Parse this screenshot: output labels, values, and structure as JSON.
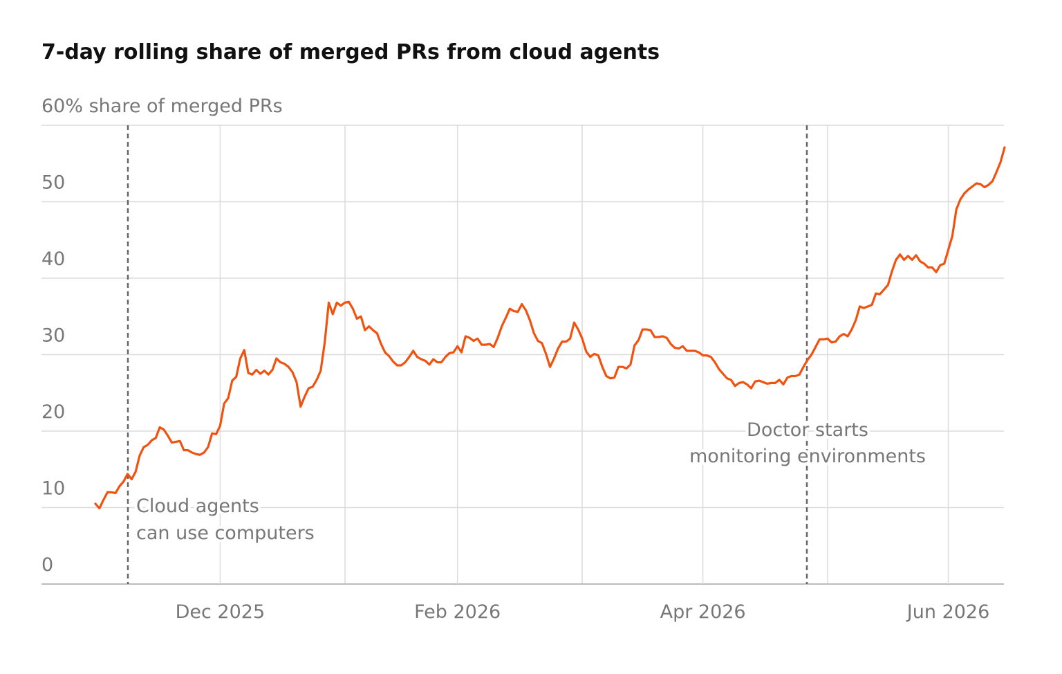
{
  "chart_data": {
    "type": "line",
    "title": "7-day rolling share of merged PRs from cloud agents",
    "color": "#f0520f",
    "ylim": [
      0,
      60
    ],
    "yticks": [
      0,
      10,
      20,
      30,
      40,
      50,
      {
        "value": 60,
        "label": "60% share of merged PRs"
      }
    ],
    "grid": true,
    "categories": [
      null,
      null,
      null,
      null,
      null,
      null,
      null,
      null,
      null,
      null,
      null,
      null,
      null,
      null,
      null,
      null,
      null,
      null,
      null,
      null,
      null,
      null,
      null,
      null,
      null,
      null,
      null,
      null,
      null,
      null,
      null,
      "Dec 2025",
      null,
      null,
      null,
      null,
      null,
      null,
      null,
      null,
      null,
      null,
      null,
      null,
      null,
      null,
      null,
      null,
      null,
      null,
      null,
      null,
      null,
      null,
      null,
      null,
      null,
      null,
      null,
      null,
      null,
      null,
      null,
      null,
      null,
      null,
      null,
      null,
      null,
      null,
      null,
      null,
      null,
      null,
      null,
      null,
      null,
      null,
      null,
      null,
      null,
      null,
      null,
      null,
      null,
      null,
      null,
      null,
      null,
      null,
      "Feb 2026",
      null,
      null,
      null,
      null,
      null,
      null,
      null,
      null,
      null,
      null,
      null,
      null,
      null,
      null,
      null,
      null,
      null,
      null,
      null,
      null,
      null,
      null,
      null,
      null,
      null,
      null,
      null,
      null,
      null,
      null,
      null,
      null,
      null,
      null,
      null,
      null,
      null,
      null,
      null,
      null,
      null,
      null,
      null,
      null,
      null,
      null,
      null,
      null,
      null,
      null,
      null,
      null,
      null,
      null,
      null,
      null,
      null,
      null,
      null,
      null,
      "Apr 2026",
      null,
      null,
      null,
      null,
      null,
      null,
      null,
      null,
      null,
      null,
      null,
      null,
      null,
      null,
      null,
      null,
      null,
      null,
      null,
      null,
      null,
      null,
      null,
      null,
      null,
      null,
      null,
      null,
      null,
      null,
      null,
      null,
      null,
      null,
      null,
      null,
      null,
      null,
      null,
      null,
      null,
      null,
      null,
      null,
      null,
      null,
      null,
      null,
      null,
      null,
      null,
      null,
      null,
      null,
      null,
      null,
      null,
      null,
      null,
      null,
      "Jun 2026",
      null,
      null,
      null,
      null,
      null,
      null,
      null,
      null,
      null,
      null,
      null,
      null,
      null,
      null
    ],
    "values": [
      10.5,
      9.9,
      11.0,
      12.0,
      12.0,
      11.9,
      12.8,
      13.4,
      14.4,
      13.7,
      14.7,
      16.8,
      17.9,
      18.2,
      18.8,
      19.1,
      20.5,
      20.2,
      19.4,
      18.5,
      18.6,
      18.7,
      17.5,
      17.5,
      17.2,
      17.0,
      16.9,
      17.2,
      17.9,
      19.7,
      19.6,
      20.7,
      23.6,
      24.3,
      26.6,
      27.1,
      29.5,
      30.6,
      27.6,
      27.4,
      28.0,
      27.5,
      27.9,
      27.4,
      28.0,
      29.5,
      29.0,
      28.8,
      28.4,
      27.7,
      26.4,
      23.2,
      24.5,
      25.6,
      25.8,
      26.7,
      27.9,
      31.6,
      36.8,
      35.3,
      36.8,
      36.4,
      36.8,
      36.9,
      36.0,
      34.7,
      35.0,
      33.2,
      33.7,
      33.2,
      32.8,
      31.4,
      30.3,
      29.8,
      29.1,
      28.6,
      28.6,
      29.0,
      29.7,
      30.5,
      29.7,
      29.4,
      29.2,
      28.7,
      29.4,
      29.0,
      29.0,
      29.7,
      30.2,
      30.3,
      31.1,
      30.3,
      32.4,
      32.2,
      31.8,
      32.1,
      31.3,
      31.3,
      31.4,
      31.0,
      32.2,
      33.7,
      34.8,
      36.0,
      35.7,
      35.6,
      36.6,
      35.8,
      34.5,
      32.8,
      31.8,
      31.5,
      30.1,
      28.4,
      29.5,
      30.8,
      31.7,
      31.7,
      32.1,
      34.2,
      33.3,
      32.1,
      30.4,
      29.7,
      30.1,
      29.9,
      28.4,
      27.2,
      26.9,
      27.0,
      28.4,
      28.4,
      28.2,
      28.7,
      31.2,
      31.9,
      33.3,
      33.3,
      33.2,
      32.3,
      32.3,
      32.4,
      32.2,
      31.4,
      30.9,
      30.8,
      31.1,
      30.5,
      30.5,
      30.5,
      30.3,
      29.9,
      29.9,
      29.7,
      29.0,
      28.1,
      27.5,
      26.9,
      26.7,
      25.9,
      26.3,
      26.4,
      26.1,
      25.6,
      26.5,
      26.6,
      26.4,
      26.2,
      26.3,
      26.3,
      26.7,
      26.1,
      27.0,
      27.2,
      27.2,
      27.4,
      28.4,
      29.3,
      30.0,
      31.0,
      32.0,
      32.0,
      32.1,
      31.6,
      31.7,
      32.4,
      32.7,
      32.4,
      33.3,
      34.5,
      36.3,
      36.1,
      36.3,
      36.5,
      38.0,
      37.9,
      38.5,
      39.1,
      40.9,
      42.4,
      43.1,
      42.4,
      42.9,
      42.4,
      43.0,
      42.2,
      41.9,
      41.4,
      41.4,
      40.8,
      41.7,
      41.9,
      43.7,
      45.5,
      49.0,
      50.3,
      51.1,
      51.6,
      52.0,
      52.4,
      52.3,
      51.9,
      52.2,
      52.7,
      53.9,
      55.2,
      57.1
    ],
    "annotations": [
      {
        "lines": [
          "Cloud agents",
          "can use computers"
        ]
      },
      {
        "lines": [
          "Doctor starts",
          "monitoring environments"
        ]
      }
    ]
  }
}
